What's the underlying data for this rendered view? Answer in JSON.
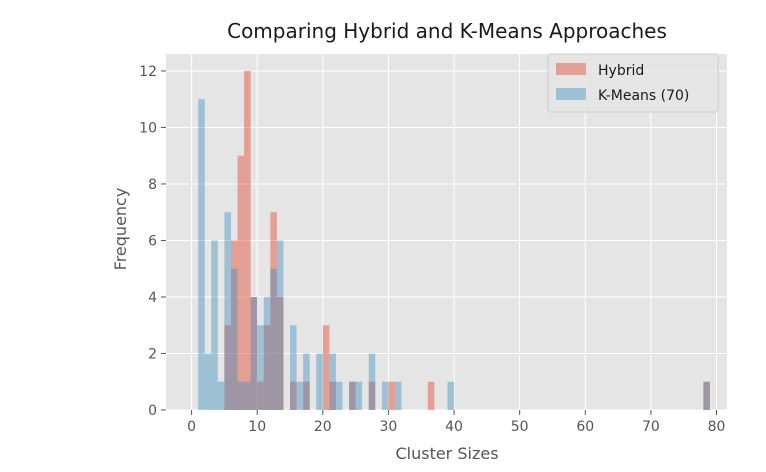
{
  "chart_data": {
    "type": "bar",
    "title": "Comparing Hybrid and K-Means Approaches",
    "xlabel": "Cluster Sizes",
    "ylabel": "Frequency",
    "xlim": [
      -3.9,
      81.6
    ],
    "ylim": [
      0,
      12.6
    ],
    "xticks": [
      0,
      10,
      20,
      30,
      40,
      50,
      60,
      70,
      80
    ],
    "yticks": [
      0,
      2,
      4,
      6,
      8,
      10,
      12
    ],
    "bin_width": 1,
    "grid": true,
    "legend_position": "top-right",
    "series": [
      {
        "name": "Hybrid",
        "color": "#e24a33",
        "alpha": 0.45,
        "bins": [
          {
            "x": 5,
            "count": 3
          },
          {
            "x": 6,
            "count": 6
          },
          {
            "x": 7,
            "count": 9
          },
          {
            "x": 8,
            "count": 12
          },
          {
            "x": 9,
            "count": 4
          },
          {
            "x": 10,
            "count": 1
          },
          {
            "x": 11,
            "count": 3
          },
          {
            "x": 12,
            "count": 7
          },
          {
            "x": 13,
            "count": 4
          },
          {
            "x": 15,
            "count": 1
          },
          {
            "x": 17,
            "count": 1
          },
          {
            "x": 20,
            "count": 3
          },
          {
            "x": 21,
            "count": 1
          },
          {
            "x": 24,
            "count": 1
          },
          {
            "x": 27,
            "count": 1
          },
          {
            "x": 30,
            "count": 1
          },
          {
            "x": 36,
            "count": 1
          },
          {
            "x": 78,
            "count": 1
          }
        ]
      },
      {
        "name": "K-Means (70)",
        "color": "#348abd",
        "alpha": 0.4,
        "bins": [
          {
            "x": 1,
            "count": 11
          },
          {
            "x": 2,
            "count": 2
          },
          {
            "x": 3,
            "count": 6
          },
          {
            "x": 4,
            "count": 1
          },
          {
            "x": 5,
            "count": 7
          },
          {
            "x": 6,
            "count": 5
          },
          {
            "x": 7,
            "count": 1
          },
          {
            "x": 8,
            "count": 1
          },
          {
            "x": 9,
            "count": 4
          },
          {
            "x": 10,
            "count": 3
          },
          {
            "x": 11,
            "count": 4
          },
          {
            "x": 12,
            "count": 5
          },
          {
            "x": 13,
            "count": 6
          },
          {
            "x": 15,
            "count": 3
          },
          {
            "x": 16,
            "count": 1
          },
          {
            "x": 17,
            "count": 2
          },
          {
            "x": 19,
            "count": 2
          },
          {
            "x": 21,
            "count": 2
          },
          {
            "x": 22,
            "count": 1
          },
          {
            "x": 24,
            "count": 1
          },
          {
            "x": 25,
            "count": 1
          },
          {
            "x": 27,
            "count": 2
          },
          {
            "x": 29,
            "count": 1
          },
          {
            "x": 31,
            "count": 1
          },
          {
            "x": 39,
            "count": 1
          },
          {
            "x": 78,
            "count": 1
          }
        ]
      }
    ]
  }
}
